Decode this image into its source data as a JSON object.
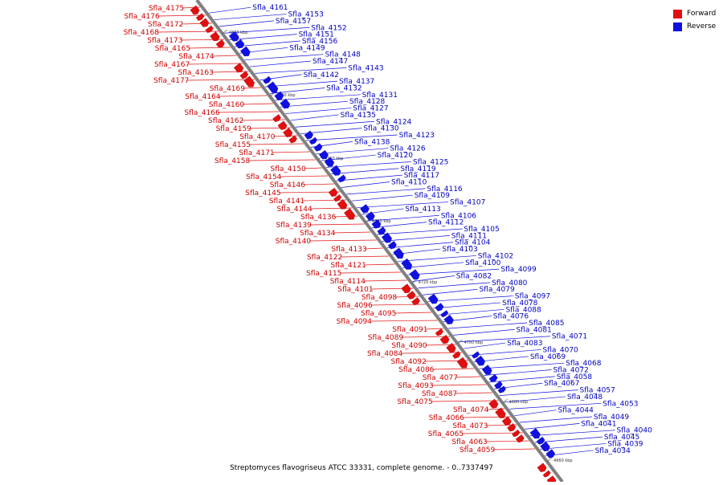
{
  "colors": {
    "forward": "#e01010",
    "reverse": "#1010e0",
    "backbone": "#808080"
  },
  "legend": [
    {
      "label": "Forward",
      "color": "#e01010"
    },
    {
      "label": "Reverse",
      "color": "#1010e0"
    }
  ],
  "caption": "Streptomyces flavogriseus ATCC 33331, complete genome. - 0..7337497",
  "ticks": [
    "4800 kbp",
    "4780 kbp",
    "4760 kbp",
    "4740 kbp",
    "4720 kbp",
    "4700 kbp",
    "4680 kbp",
    "4660 kbp"
  ],
  "forward_labels": [
    "Sfla_4175",
    "Sfla_4176",
    "Sfla_4172",
    "Sfla_4168",
    "Sfla_4173",
    "Sfla_4165",
    "Sfla_4174",
    "Sfla_4167",
    "Sfla_4163",
    "Sfla_4177",
    "Sfla_4169",
    "Sfla_4164",
    "Sfla_4160",
    "Sfla_4166",
    "Sfla_4162",
    "Sfla_4159",
    "Sfla_4170",
    "Sfla_4155",
    "Sfla_4171",
    "Sfla_4158",
    "Sfla_4150",
    "Sfla_4154",
    "Sfla_4146",
    "Sfla_4145",
    "Sfla_4141",
    "Sfla_4144",
    "Sfla_4136",
    "Sfla_4139",
    "Sfla_4134",
    "Sfla_4140",
    "Sfla_4133",
    "Sfla_4122",
    "Sfla_4121",
    "Sfla_4115",
    "Sfla_4114",
    "Sfla_4101",
    "Sfla_4098",
    "Sfla_4096",
    "Sfla_4095",
    "Sfla_4094",
    "Sfla_4091",
    "Sfla_4089",
    "Sfla_4090",
    "Sfla_4084",
    "Sfla_4092",
    "Sfla_4086",
    "Sfla_4077",
    "Sfla_4093",
    "Sfla_4087",
    "Sfla_4075",
    "Sfla_4074",
    "Sfla_4066",
    "Sfla_4073",
    "Sfla_4065",
    "Sfla_4063",
    "Sfla_4059"
  ],
  "reverse_labels": [
    "Sfla_4161",
    "Sfla_4153",
    "Sfla_4157",
    "Sfla_4152",
    "Sfla_4151",
    "Sfla_4156",
    "Sfla_4149",
    "Sfla_4148",
    "Sfla_4147",
    "Sfla_4143",
    "Sfla_4142",
    "Sfla_4137",
    "Sfla_4132",
    "Sfla_4131",
    "Sfla_4128",
    "Sfla_4127",
    "Sfla_4135",
    "Sfla_4124",
    "Sfla_4130",
    "Sfla_4123",
    "Sfla_4138",
    "Sfla_4126",
    "Sfla_4120",
    "Sfla_4125",
    "Sfla_4119",
    "Sfla_4117",
    "Sfla_4110",
    "Sfla_4116",
    "Sfla_4109",
    "Sfla_4107",
    "Sfla_4113",
    "Sfla_4106",
    "Sfla_4112",
    "Sfla_4105",
    "Sfla_4111",
    "Sfla_4104",
    "Sfla_4103",
    "Sfla_4102",
    "Sfla_4100",
    "Sfla_4099",
    "Sfla_4082",
    "Sfla_4080",
    "Sfla_4079",
    "Sfla_4097",
    "Sfla_4078",
    "Sfla_4088",
    "Sfla_4076",
    "Sfla_4085",
    "Sfla_4081",
    "Sfla_4071",
    "Sfla_4083",
    "Sfla_4070",
    "Sfla_4069",
    "Sfla_4068",
    "Sfla_4072",
    "Sfla_4058",
    "Sfla_4067",
    "Sfla_4057",
    "Sfla_4048",
    "Sfla_4053",
    "Sfla_4044",
    "Sfla_4049",
    "Sfla_4041",
    "Sfla_4040",
    "Sfla_4045",
    "Sfla_4039",
    "Sfla_4034"
  ]
}
